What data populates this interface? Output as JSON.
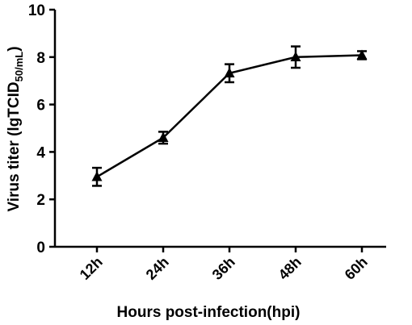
{
  "chart_data": {
    "type": "line",
    "title": "",
    "xlabel": "Hours post-infection(hpi)",
    "ylabel": {
      "main": "Virus titer (lgTCID",
      "sub": "50/mL",
      "close": ")"
    },
    "categories": [
      "12h",
      "24h",
      "36h",
      "48h",
      "60h"
    ],
    "series": [
      {
        "values": [
          2.95,
          4.6,
          7.32,
          8.0,
          8.08
        ],
        "errors": [
          0.38,
          0.25,
          0.38,
          0.45,
          0.17
        ],
        "marker": "triangle",
        "color": "#000000"
      }
    ],
    "ylim": [
      0,
      10
    ],
    "yticks": [
      "0",
      "2",
      "4",
      "6",
      "8",
      "10"
    ],
    "grid": false,
    "legend": "none"
  }
}
